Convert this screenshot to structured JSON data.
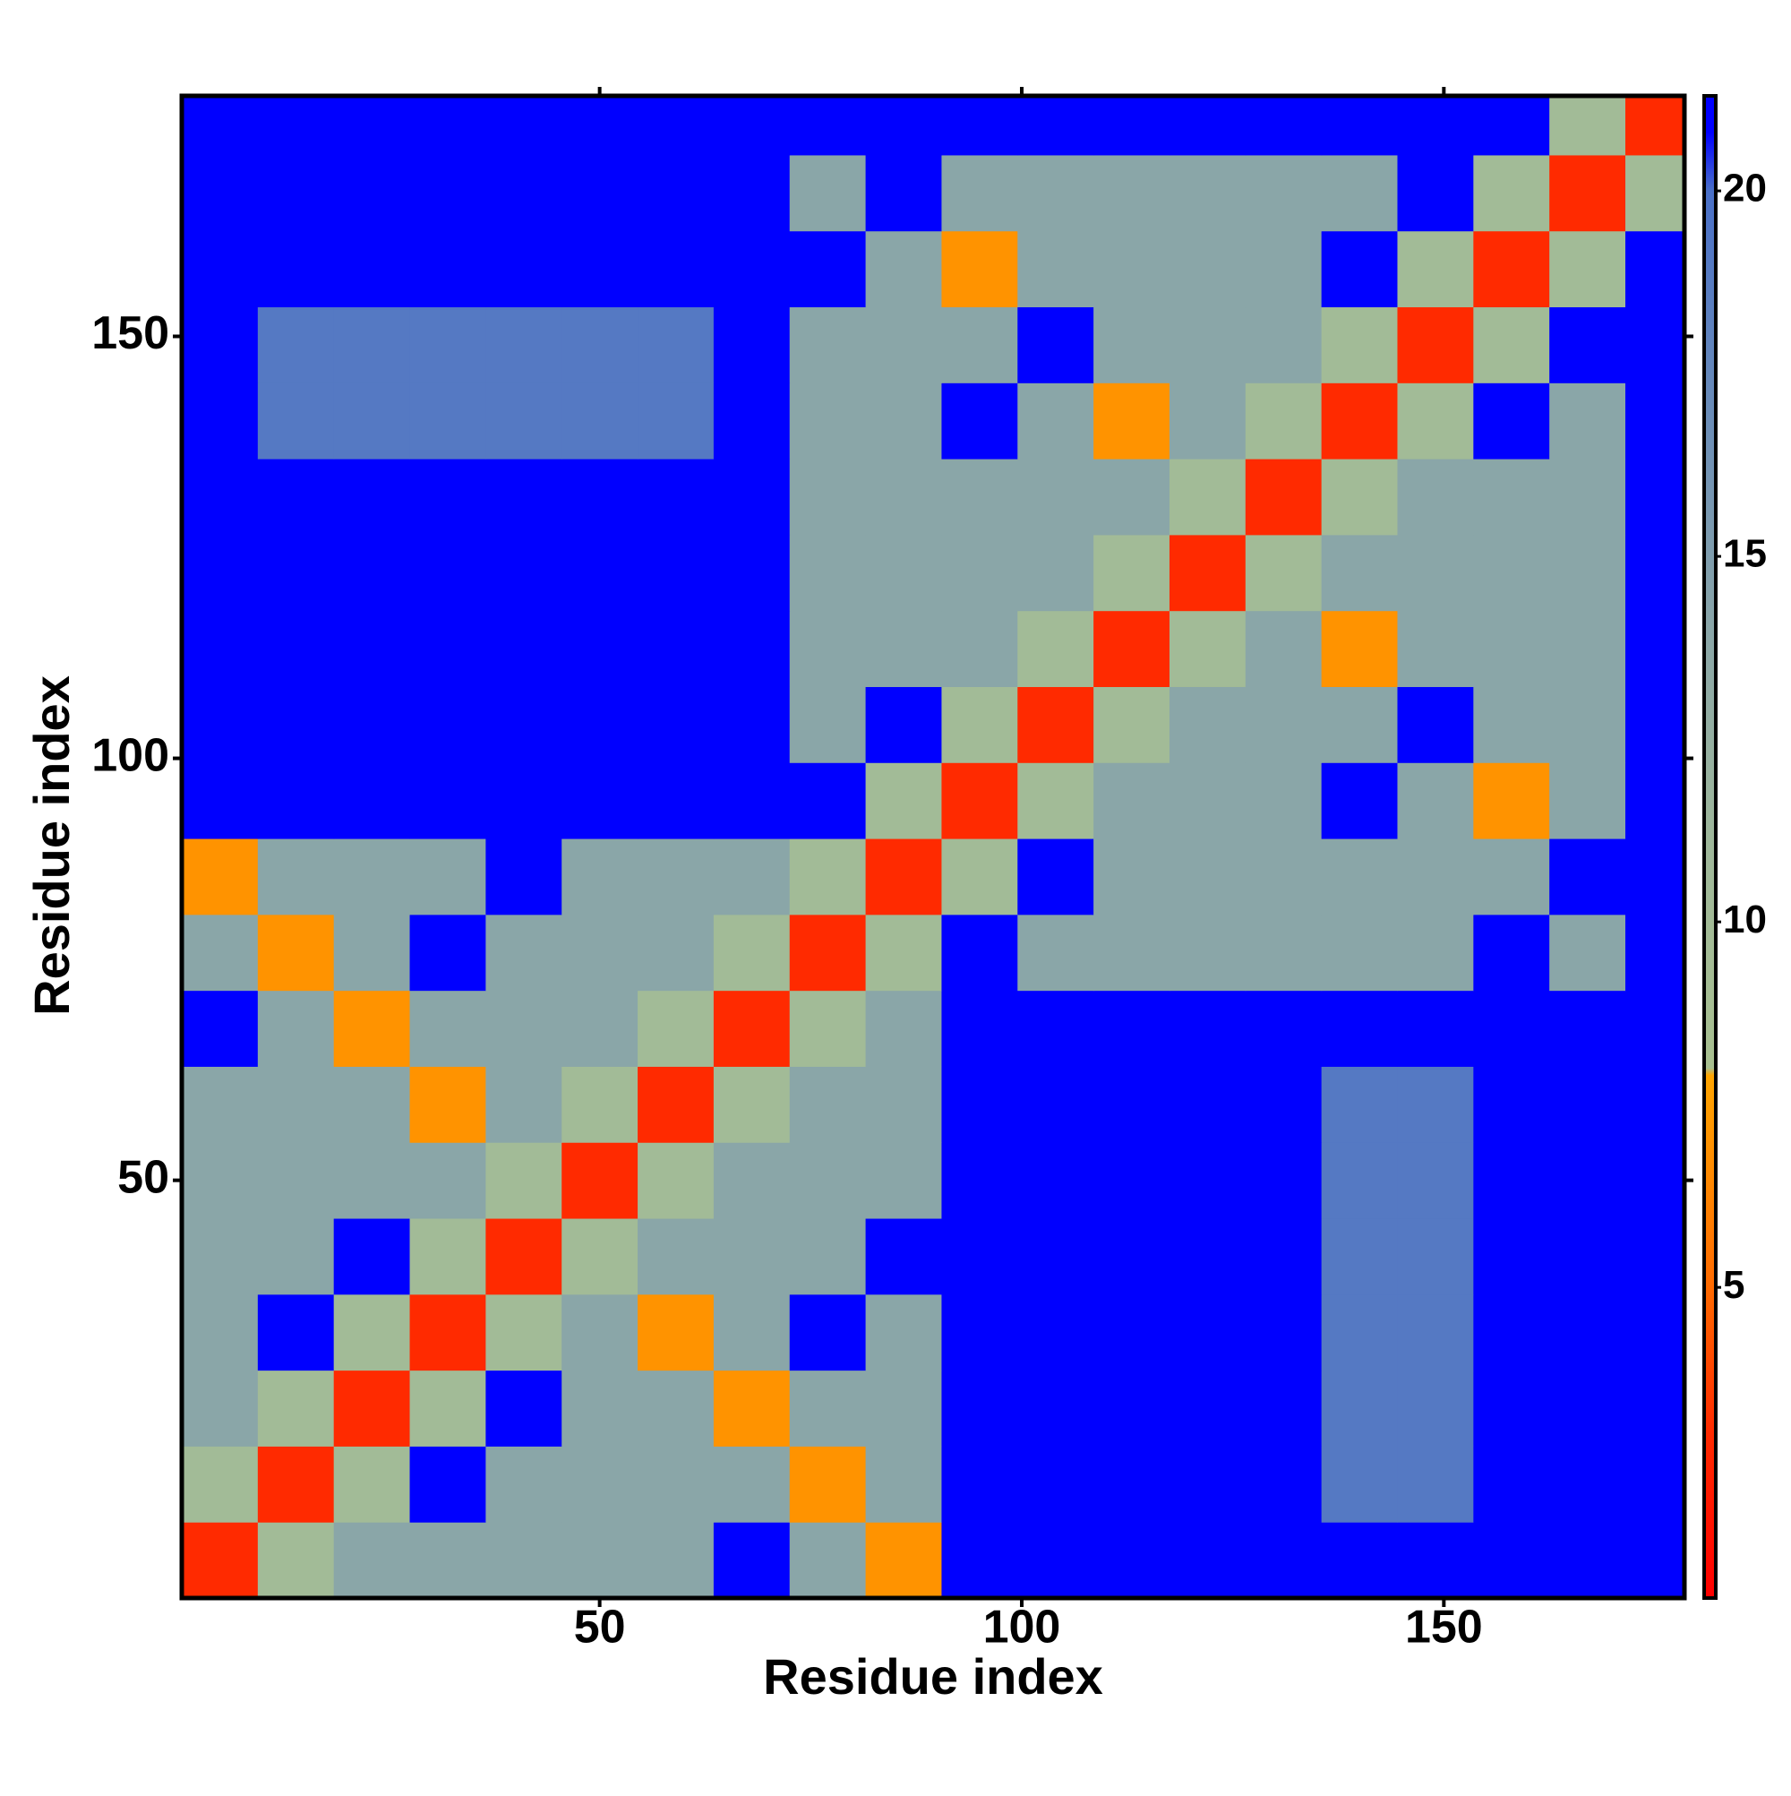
{
  "chart_data": {
    "type": "heatmap",
    "xlabel": "Residue index",
    "ylabel": "Residue index",
    "xlim": [
      0.5,
      178.5
    ],
    "ylim": [
      0.5,
      178.5
    ],
    "xticks": [
      50,
      100,
      150
    ],
    "yticks": [
      50,
      100,
      150
    ],
    "x_bins": [
      0.5,
      9.5,
      18.5,
      27.5,
      36.5,
      45.5,
      54.5,
      63.5,
      72.5,
      81.5,
      90.5,
      99.5,
      108.5,
      117.5,
      126.5,
      135.5,
      144.5,
      153.5,
      162.5,
      171.5,
      178.5
    ],
    "y_bins": [
      0.5,
      9.5,
      18.5,
      27.5,
      36.5,
      45.5,
      54.5,
      63.5,
      72.5,
      81.5,
      90.5,
      99.5,
      108.5,
      117.5,
      126.5,
      135.5,
      144.5,
      153.5,
      162.5,
      171.5,
      178.5
    ],
    "values": [
      [
        3,
        10,
        14,
        14,
        14,
        14,
        14,
        21,
        14,
        7,
        21,
        21,
        21,
        21,
        21,
        21,
        21,
        21,
        21,
        21
      ],
      [
        10,
        3,
        10,
        21,
        14,
        14,
        14,
        14,
        7,
        14,
        21,
        21,
        21,
        21,
        21,
        19,
        19,
        21,
        21,
        21
      ],
      [
        14,
        10,
        3,
        10,
        21,
        14,
        14,
        7,
        14,
        14,
        21,
        21,
        21,
        21,
        21,
        19,
        19,
        21,
        21,
        21
      ],
      [
        14,
        21,
        10,
        3,
        10,
        14,
        7,
        14,
        21,
        14,
        21,
        21,
        21,
        21,
        21,
        19,
        19,
        21,
        21,
        21
      ],
      [
        14,
        14,
        21,
        10,
        3,
        10,
        14,
        14,
        14,
        21,
        21,
        21,
        21,
        21,
        21,
        19,
        19,
        21,
        21,
        21
      ],
      [
        14,
        14,
        14,
        14,
        10,
        3,
        10,
        14,
        14,
        14,
        21,
        21,
        21,
        21,
        21,
        19,
        19,
        21,
        21,
        21
      ],
      [
        14,
        14,
        14,
        7,
        14,
        10,
        3,
        10,
        14,
        14,
        21,
        21,
        21,
        21,
        21,
        19,
        19,
        21,
        21,
        21
      ],
      [
        21,
        14,
        7,
        14,
        14,
        14,
        10,
        3,
        10,
        14,
        21,
        21,
        21,
        21,
        21,
        21,
        21,
        21,
        21,
        21
      ],
      [
        14,
        7,
        14,
        21,
        14,
        14,
        14,
        10,
        3,
        10,
        21,
        14,
        14,
        14,
        14,
        14,
        14,
        21,
        14,
        21
      ],
      [
        7,
        14,
        14,
        14,
        21,
        14,
        14,
        14,
        10,
        3,
        10,
        21,
        14,
        14,
        14,
        14,
        14,
        14,
        21,
        21
      ],
      [
        21,
        21,
        21,
        21,
        21,
        21,
        21,
        21,
        21,
        10,
        3,
        10,
        14,
        14,
        14,
        21,
        14,
        7,
        14,
        21
      ],
      [
        21,
        21,
        21,
        21,
        21,
        21,
        21,
        21,
        14,
        21,
        10,
        3,
        10,
        14,
        14,
        14,
        21,
        14,
        14,
        21
      ],
      [
        21,
        21,
        21,
        21,
        21,
        21,
        21,
        21,
        14,
        14,
        14,
        10,
        3,
        10,
        14,
        7,
        14,
        14,
        14,
        21
      ],
      [
        21,
        21,
        21,
        21,
        21,
        21,
        21,
        21,
        14,
        14,
        14,
        14,
        10,
        3,
        10,
        14,
        14,
        14,
        14,
        21
      ],
      [
        21,
        21,
        21,
        21,
        21,
        21,
        21,
        21,
        14,
        14,
        14,
        14,
        14,
        10,
        3,
        10,
        14,
        14,
        14,
        21
      ],
      [
        21,
        19,
        19,
        19,
        19,
        19,
        19,
        21,
        14,
        14,
        21,
        14,
        7,
        14,
        10,
        3,
        10,
        21,
        14,
        21
      ],
      [
        21,
        19,
        19,
        19,
        19,
        19,
        19,
        21,
        14,
        14,
        14,
        21,
        14,
        14,
        14,
        10,
        3,
        10,
        21,
        21
      ],
      [
        21,
        21,
        21,
        21,
        21,
        21,
        21,
        21,
        21,
        14,
        7,
        14,
        14,
        14,
        14,
        21,
        10,
        3,
        10,
        21
      ],
      [
        21,
        21,
        21,
        21,
        21,
        21,
        21,
        21,
        14,
        21,
        14,
        14,
        14,
        14,
        14,
        14,
        21,
        10,
        3,
        10
      ],
      [
        21,
        21,
        21,
        21,
        21,
        21,
        21,
        21,
        21,
        21,
        21,
        21,
        21,
        21,
        21,
        21,
        21,
        21,
        10,
        3
      ]
    ],
    "colorbar": {
      "lim": [
        0.75,
        21.3
      ],
      "ticks": [
        5,
        10,
        15,
        20
      ]
    },
    "colorscale": [
      [
        0.75,
        "#ff0000"
      ],
      [
        3,
        "#ff2a00"
      ],
      [
        5,
        "#ff6a00"
      ],
      [
        7.9,
        "#ffa500"
      ],
      [
        8,
        "#a8c090"
      ],
      [
        11,
        "#9fb89a"
      ],
      [
        14,
        "#8aa6a8"
      ],
      [
        17,
        "#6a8cb8"
      ],
      [
        20,
        "#4a70c8"
      ],
      [
        20.8,
        "#0000ff"
      ]
    ]
  }
}
